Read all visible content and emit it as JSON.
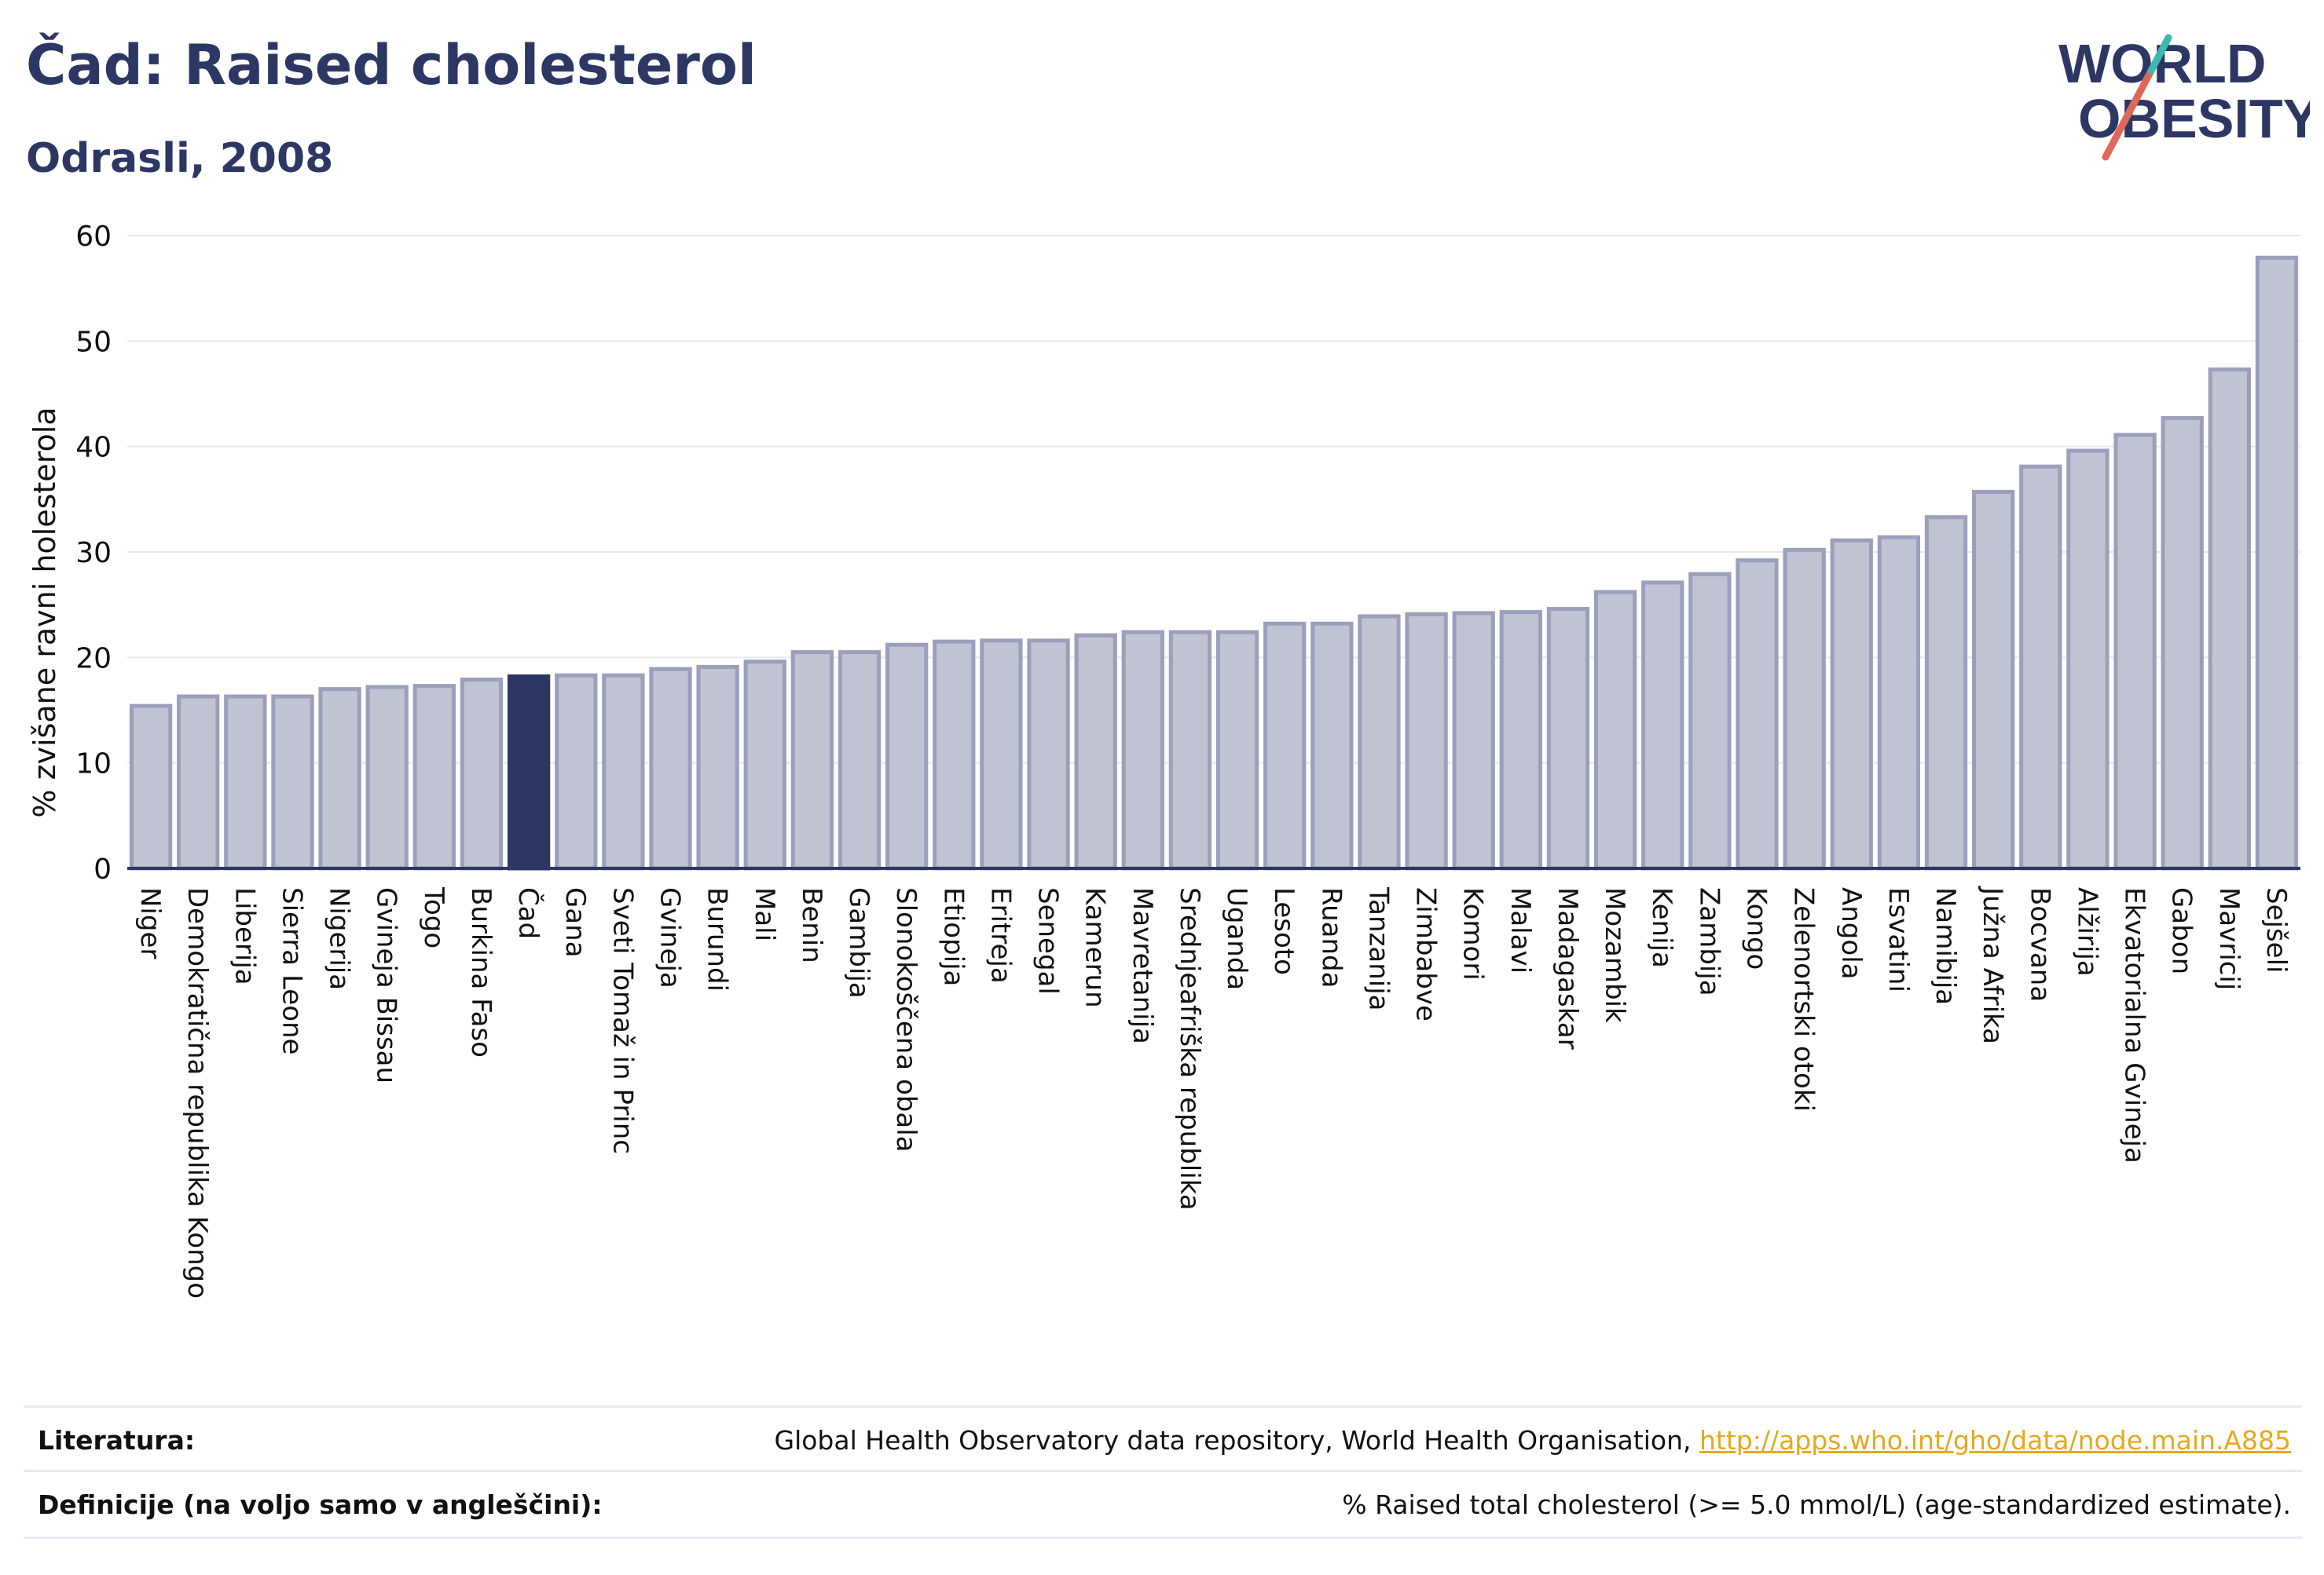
{
  "header": {
    "title": "Čad: Raised cholesterol",
    "subtitle": "Odrasli, 2008"
  },
  "logo": {
    "line1": "WORLD",
    "line2": "OBESITY",
    "accent_colors": [
      "#e0685a",
      "#3fb6b0"
    ]
  },
  "chart_data": {
    "type": "bar",
    "title": "Čad: Raised cholesterol",
    "subtitle": "Odrasli, 2008",
    "ylabel": "% zvišane ravni holesterola",
    "xlabel": "",
    "ylim": [
      0,
      60
    ],
    "yticks": [
      0,
      10,
      20,
      30,
      40,
      50,
      60
    ],
    "grid": true,
    "highlight": "Čad",
    "colors": {
      "bar": "#bfc3d2",
      "bar_border": "#9aa0bb",
      "highlight": "#2d3763"
    },
    "categories": [
      "Niger",
      "Demokratična republika Kongo",
      "Liberija",
      "Sierra Leone",
      "Nigerija",
      "Gvineja Bissau",
      "Togo",
      "Burkina Faso",
      "Čad",
      "Gana",
      "Sveti Tomaž in Princ",
      "Gvineja",
      "Burundi",
      "Mali",
      "Benin",
      "Gambija",
      "Slonokoščena obala",
      "Etiopija",
      "Eritreja",
      "Senegal",
      "Kamerun",
      "Mavretanija",
      "Srednjeafriška republika",
      "Uganda",
      "Lesoto",
      "Ruanda",
      "Tanzanija",
      "Zimbabve",
      "Komori",
      "Malavi",
      "Madagaskar",
      "Mozambik",
      "Kenija",
      "Zambija",
      "Kongo",
      "Zelenortski otoki",
      "Angola",
      "Esvatini",
      "Namibija",
      "Južna Afrika",
      "Bocvana",
      "Alžirija",
      "Ekvatorialna Gvineja",
      "Gabon",
      "Mavricij",
      "Sejšeli"
    ],
    "values": [
      15.4,
      16.3,
      16.3,
      16.3,
      17.0,
      17.2,
      17.3,
      17.9,
      18.2,
      18.3,
      18.3,
      18.9,
      19.1,
      19.6,
      20.5,
      20.5,
      21.2,
      21.5,
      21.6,
      21.6,
      22.1,
      22.4,
      22.4,
      22.4,
      23.2,
      23.2,
      23.9,
      24.1,
      24.2,
      24.3,
      24.6,
      26.2,
      27.1,
      27.9,
      29.2,
      30.2,
      31.1,
      31.4,
      33.3,
      35.7,
      38.1,
      39.6,
      41.1,
      42.7,
      47.3,
      57.9
    ]
  },
  "footer": {
    "sources_label": "Literatura:",
    "sources_text": "Global Health Observatory data repository, World Health Organisation,",
    "sources_link": "http://apps.who.int/gho/data/node.main.A885",
    "definitions_label": "Definicije (na voljo samo v angleščini):",
    "definitions_text": "% Raised total cholesterol (>= 5.0 mmol/L) (age-standardized estimate)."
  }
}
